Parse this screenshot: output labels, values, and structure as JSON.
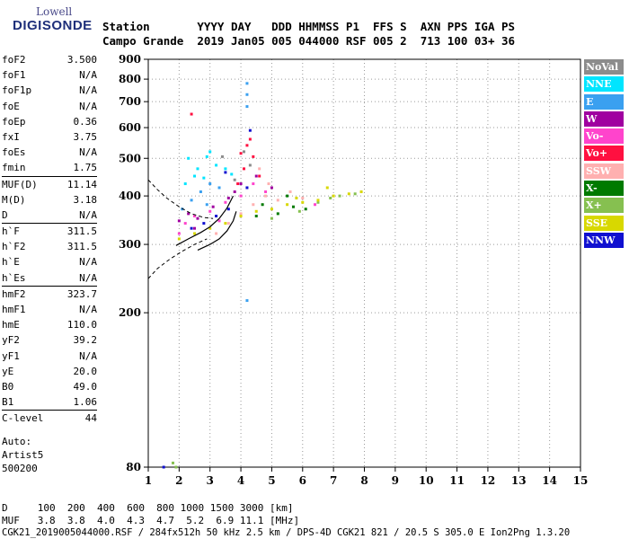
{
  "logo": {
    "line1": "Lowell",
    "line2": "DIGISONDE"
  },
  "header": {
    "labels": "Station       YYYY DAY   DDD HHMMSS P1  FFS S  AXN PPS IGA PS",
    "values": "Campo Grande  2019 Jan05 005 044000 RSF 005 2  713 100 03+ 36"
  },
  "params": {
    "group1": [
      {
        "name": "foF2",
        "value": "3.500"
      },
      {
        "name": "foF1",
        "value": "N/A"
      },
      {
        "name": "foF1p",
        "value": "N/A"
      },
      {
        "name": "foE",
        "value": "N/A"
      },
      {
        "name": "foEp",
        "value": "0.36"
      },
      {
        "name": "fxI",
        "value": "3.75"
      },
      {
        "name": "foEs",
        "value": "N/A"
      },
      {
        "name": "fmin",
        "value": "1.75"
      }
    ],
    "group2": [
      {
        "name": "MUF(D)",
        "value": "11.14"
      },
      {
        "name": "M(D)",
        "value": "3.18"
      },
      {
        "name": "D",
        "value": "N/A"
      }
    ],
    "group3": [
      {
        "name": "h`F",
        "value": "311.5"
      },
      {
        "name": "h`F2",
        "value": "311.5"
      },
      {
        "name": "h`E",
        "value": "N/A"
      },
      {
        "name": "h`Es",
        "value": "N/A"
      }
    ],
    "group4": [
      {
        "name": "hmF2",
        "value": "323.7"
      },
      {
        "name": "hmF1",
        "value": "N/A"
      },
      {
        "name": "hmE",
        "value": "110.0"
      },
      {
        "name": "yF2",
        "value": "39.2"
      },
      {
        "name": "yF1",
        "value": "N/A"
      },
      {
        "name": "yE",
        "value": "20.0"
      },
      {
        "name": "B0",
        "value": "49.0"
      },
      {
        "name": "B1",
        "value": "1.06"
      }
    ],
    "group5": [
      {
        "name": "C-level",
        "value": "44"
      }
    ]
  },
  "autoscaling": {
    "line1": "Auto:",
    "line2": "Artist5",
    "line3": "500200"
  },
  "legend": [
    {
      "label": "NoVal",
      "color": "#8c8c8c"
    },
    {
      "label": "NNE",
      "color": "#00e5ff"
    },
    {
      "label": "E",
      "color": "#3aa0f0"
    },
    {
      "label": "W",
      "color": "#a000a0"
    },
    {
      "label": "Vo-",
      "color": "#ff44cc"
    },
    {
      "label": "Vo+",
      "color": "#ff1040"
    },
    {
      "label": "SSW",
      "color": "#ffb0b0"
    },
    {
      "label": "X-",
      "color": "#007a00"
    },
    {
      "label": "X+",
      "color": "#86c050"
    },
    {
      "label": "SSE",
      "color": "#d8d800"
    },
    {
      "label": "NNW",
      "color": "#1010d0"
    }
  ],
  "chart_data": {
    "type": "scatter",
    "xlabel": "",
    "ylabel": "",
    "xlim": [
      1,
      15
    ],
    "ylim": [
      80,
      900
    ],
    "x_ticks": [
      1,
      2,
      3,
      4,
      5,
      6,
      7,
      8,
      9,
      10,
      11,
      12,
      13,
      14,
      15
    ],
    "y_ticks": [
      80,
      200,
      300,
      400,
      500,
      600,
      700,
      800,
      900
    ],
    "y_scale": "log",
    "series": [
      {
        "name": "NNE",
        "color": "#00e5ff",
        "points": [
          [
            2.3,
            500
          ],
          [
            2.6,
            470
          ],
          [
            2.9,
            505
          ],
          [
            3.2,
            480
          ],
          [
            3.5,
            470
          ],
          [
            2.5,
            450
          ],
          [
            3.0,
            520
          ],
          [
            2.2,
            430
          ],
          [
            3.7,
            455
          ],
          [
            2.8,
            445
          ]
        ]
      },
      {
        "name": "E",
        "color": "#3aa0f0",
        "points": [
          [
            2.1,
            370
          ],
          [
            2.4,
            390
          ],
          [
            2.7,
            410
          ],
          [
            3.0,
            430
          ],
          [
            3.3,
            420
          ],
          [
            4.2,
            780
          ],
          [
            4.2,
            730
          ],
          [
            4.2,
            680
          ],
          [
            4.2,
            215
          ],
          [
            2.9,
            380
          ]
        ]
      },
      {
        "name": "W",
        "color": "#a000a0",
        "points": [
          [
            2.0,
            345
          ],
          [
            2.3,
            360
          ],
          [
            2.6,
            350
          ],
          [
            3.1,
            375
          ],
          [
            3.6,
            395
          ],
          [
            4.0,
            430
          ],
          [
            4.5,
            450
          ],
          [
            5.0,
            420
          ],
          [
            3.8,
            410
          ],
          [
            2.5,
            330
          ]
        ]
      },
      {
        "name": "Vo-",
        "color": "#ff44cc",
        "points": [
          [
            2.2,
            340
          ],
          [
            2.5,
            355
          ],
          [
            3.0,
            365
          ],
          [
            3.5,
            385
          ],
          [
            4.0,
            400
          ],
          [
            4.4,
            430
          ],
          [
            6.4,
            380
          ],
          [
            3.3,
            345
          ],
          [
            2.0,
            320
          ],
          [
            4.8,
            410
          ]
        ]
      },
      {
        "name": "Vo+",
        "color": "#ff1040",
        "points": [
          [
            4.2,
            540
          ],
          [
            4.4,
            505
          ],
          [
            4.1,
            470
          ],
          [
            2.4,
            650
          ],
          [
            3.9,
            430
          ],
          [
            4.6,
            450
          ],
          [
            4.3,
            560
          ],
          [
            4.0,
            515
          ]
        ]
      },
      {
        "name": "SSW",
        "color": "#ffb0b0",
        "points": [
          [
            3.2,
            320
          ],
          [
            3.6,
            340
          ],
          [
            4.0,
            360
          ],
          [
            4.4,
            380
          ],
          [
            4.8,
            400
          ],
          [
            5.2,
            390
          ],
          [
            5.6,
            410
          ],
          [
            6.0,
            395
          ],
          [
            4.6,
            470
          ],
          [
            4.9,
            430
          ]
        ]
      },
      {
        "name": "X-",
        "color": "#007a00",
        "points": [
          [
            4.7,
            380
          ],
          [
            5.2,
            360
          ],
          [
            5.7,
            375
          ],
          [
            6.1,
            370
          ],
          [
            4.5,
            355
          ],
          [
            5.5,
            400
          ]
        ]
      },
      {
        "name": "X+",
        "color": "#86c050",
        "points": [
          [
            1.8,
            82
          ],
          [
            5.0,
            350
          ],
          [
            5.9,
            365
          ],
          [
            6.5,
            385
          ],
          [
            7.2,
            400
          ],
          [
            7.7,
            405
          ],
          [
            6.9,
            395
          ],
          [
            1.9,
            80
          ]
        ]
      },
      {
        "name": "SSE",
        "color": "#d8d800",
        "points": [
          [
            2.0,
            310
          ],
          [
            2.5,
            320
          ],
          [
            3.0,
            330
          ],
          [
            3.5,
            340
          ],
          [
            4.0,
            355
          ],
          [
            4.5,
            365
          ],
          [
            5.0,
            370
          ],
          [
            5.5,
            380
          ],
          [
            6.0,
            385
          ],
          [
            6.5,
            390
          ],
          [
            7.0,
            400
          ],
          [
            7.5,
            405
          ],
          [
            7.9,
            410
          ],
          [
            6.8,
            420
          ],
          [
            5.8,
            395
          ]
        ]
      },
      {
        "name": "NNW",
        "color": "#1010d0",
        "points": [
          [
            2.4,
            330
          ],
          [
            2.8,
            340
          ],
          [
            3.2,
            355
          ],
          [
            3.6,
            370
          ],
          [
            4.2,
            420
          ],
          [
            4.3,
            590
          ],
          [
            3.5,
            460
          ],
          [
            1.5,
            80
          ]
        ]
      },
      {
        "name": "NoVal",
        "color": "#8c8c8c",
        "points": [
          [
            4.1,
            520
          ],
          [
            3.4,
            505
          ],
          [
            4.3,
            480
          ],
          [
            3.8,
            440
          ]
        ]
      }
    ],
    "trace_solid": [
      [
        1.9,
        298
      ],
      [
        2.3,
        310
      ],
      [
        2.7,
        322
      ],
      [
        3.0,
        333
      ],
      [
        3.3,
        350
      ],
      [
        3.55,
        372
      ],
      [
        3.75,
        400
      ]
    ],
    "trace_solid2": [
      [
        2.6,
        290
      ],
      [
        3.0,
        300
      ],
      [
        3.3,
        310
      ],
      [
        3.55,
        325
      ],
      [
        3.75,
        345
      ],
      [
        3.85,
        365
      ]
    ],
    "trace_dashed_high": [
      [
        1.0,
        440
      ],
      [
        1.3,
        415
      ],
      [
        1.6,
        395
      ],
      [
        2.0,
        375
      ],
      [
        2.4,
        360
      ],
      [
        2.8,
        352
      ],
      [
        3.1,
        350
      ]
    ],
    "trace_dashed_low": [
      [
        1.0,
        245
      ],
      [
        1.3,
        260
      ],
      [
        1.7,
        275
      ],
      [
        2.1,
        288
      ],
      [
        2.5,
        300
      ],
      [
        2.9,
        310
      ]
    ]
  },
  "footer": {
    "line1": "D     100  200  400  600  800 1000 1500 3000 [km]",
    "line2": "MUF   3.8  3.8  4.0  4.3  4.7  5.2  6.9 11.1 [MHz]",
    "line3": "CGK21_2019005044000.RSF / 284fx512h 50 kHz 2.5 km / DPS-4D CGK21 821 / 20.5 S 305.0 E Ion2Png 1.3.20"
  }
}
